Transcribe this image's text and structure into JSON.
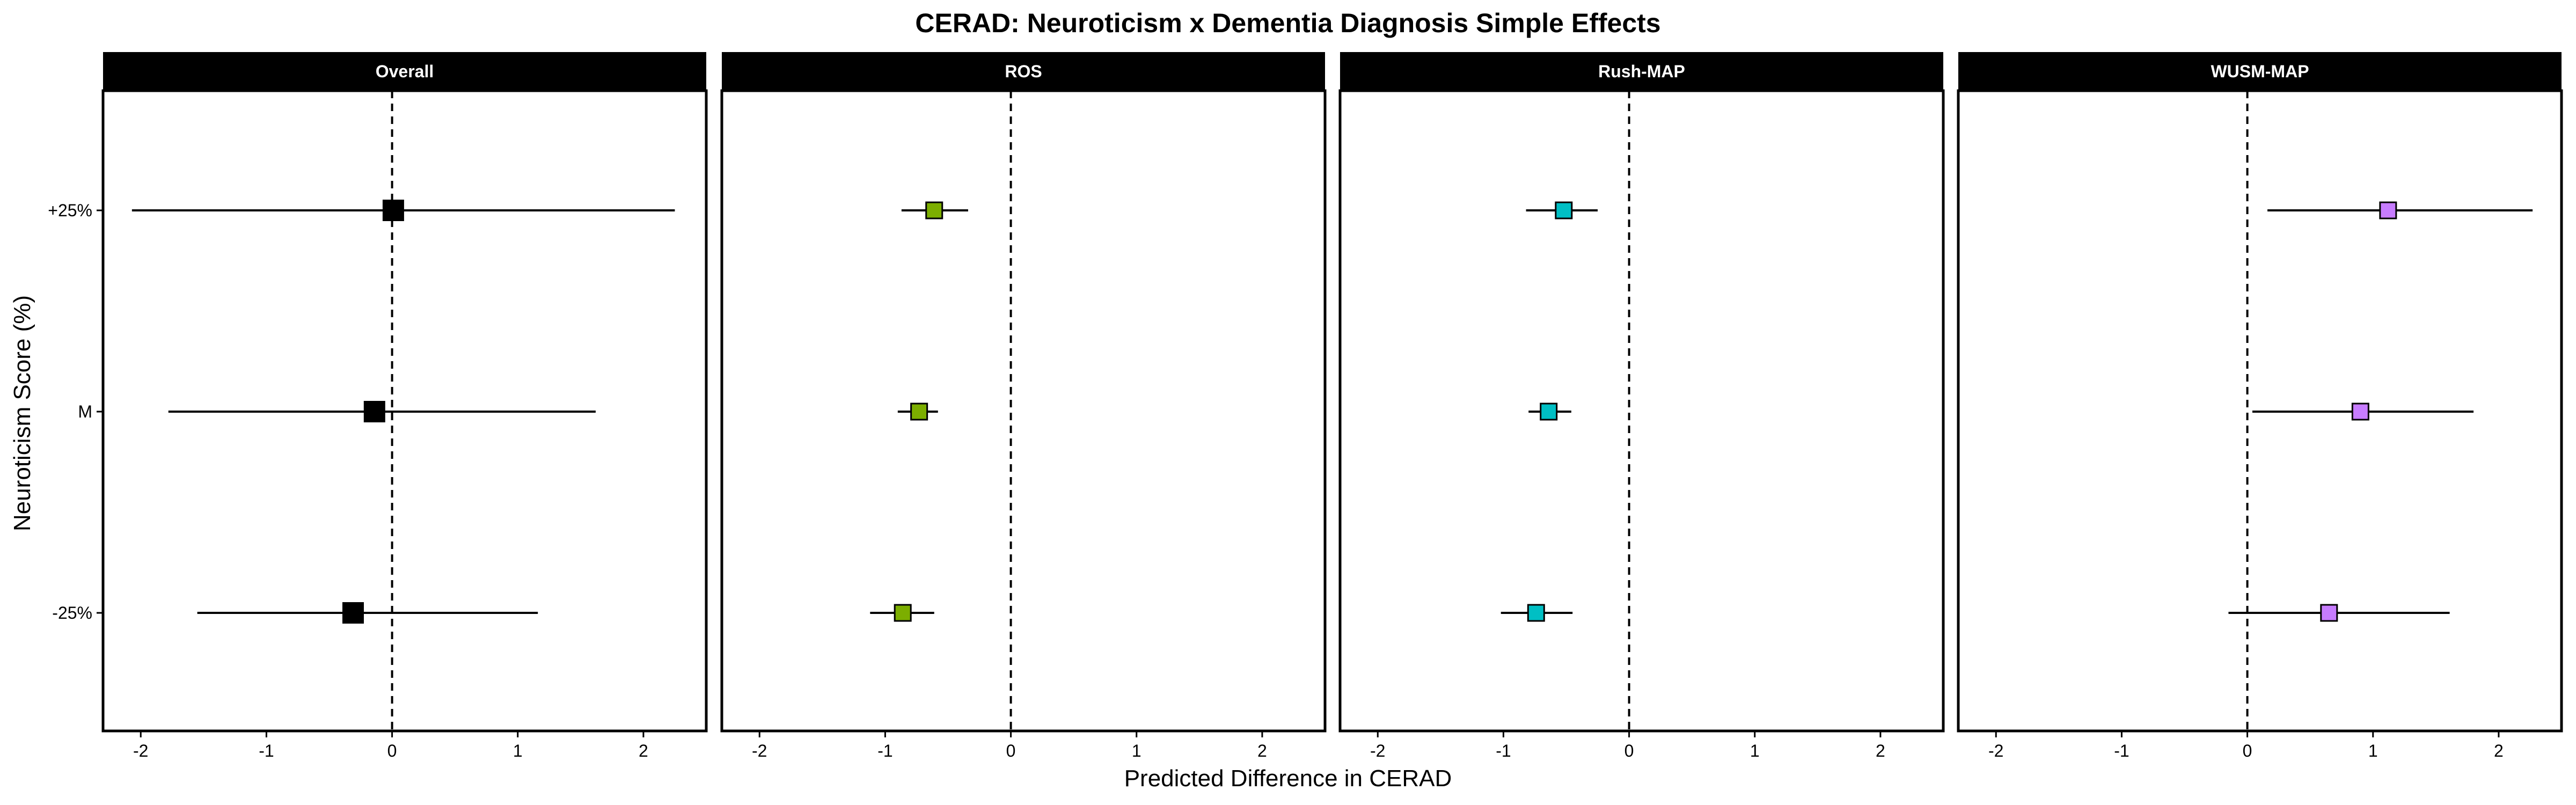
{
  "chart_data": {
    "type": "forest",
    "title": "CERAD: Neuroticism x Dementia Diagnosis Simple Effects",
    "xlabel": "Predicted Difference in CERAD",
    "ylabel": "Neuroticism Score (%)",
    "xlim": [
      -2.3,
      2.5
    ],
    "x_ticks": [
      -2,
      -1,
      0,
      1,
      2
    ],
    "x_tick_labels": [
      "-2",
      "-1",
      "0",
      "1",
      "2"
    ],
    "categories": [
      "+25%",
      "M",
      "-25%"
    ],
    "reference_line": 0,
    "grid": false,
    "panels": [
      {
        "name": "Overall",
        "color": "#000000",
        "points": [
          {
            "y": "+25%",
            "estimate": 0.01,
            "lower": -2.07,
            "upper": 2.25
          },
          {
            "y": "M",
            "estimate": -0.14,
            "lower": -1.78,
            "upper": 1.62
          },
          {
            "y": "-25%",
            "estimate": -0.31,
            "lower": -1.55,
            "upper": 1.16
          }
        ]
      },
      {
        "name": "ROS",
        "color": "#7cae00",
        "points": [
          {
            "y": "+25%",
            "estimate": -0.61,
            "lower": -0.87,
            "upper": -0.34
          },
          {
            "y": "M",
            "estimate": -0.73,
            "lower": -0.9,
            "upper": -0.58
          },
          {
            "y": "-25%",
            "estimate": -0.86,
            "lower": -1.12,
            "upper": -0.61
          }
        ]
      },
      {
        "name": "Rush-MAP",
        "color": "#00bfc4",
        "points": [
          {
            "y": "+25%",
            "estimate": -0.52,
            "lower": -0.82,
            "upper": -0.25
          },
          {
            "y": "M",
            "estimate": -0.64,
            "lower": -0.8,
            "upper": -0.46
          },
          {
            "y": "-25%",
            "estimate": -0.74,
            "lower": -1.02,
            "upper": -0.45
          }
        ]
      },
      {
        "name": "WUSM-MAP",
        "color": "#c77cff",
        "points": [
          {
            "y": "+25%",
            "estimate": 1.12,
            "lower": 0.16,
            "upper": 2.27
          },
          {
            "y": "M",
            "estimate": 0.9,
            "lower": 0.04,
            "upper": 1.8
          },
          {
            "y": "-25%",
            "estimate": 0.65,
            "lower": -0.15,
            "upper": 1.61
          }
        ]
      }
    ]
  }
}
